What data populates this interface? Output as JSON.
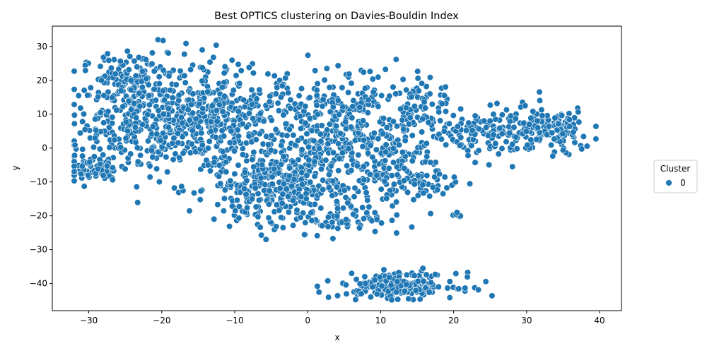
{
  "chart_data": {
    "type": "scatter",
    "title": "Best OPTICS clustering on Davies-Bouldin Index",
    "xlabel": "x",
    "ylabel": "y",
    "xlim": [
      -35,
      43
    ],
    "ylim": [
      -48,
      36
    ],
    "x_ticks": [
      -30,
      -20,
      -10,
      0,
      10,
      20,
      30,
      40
    ],
    "y_ticks": [
      -40,
      -30,
      -20,
      -10,
      0,
      10,
      20,
      30
    ],
    "grid": false,
    "legend": {
      "title": "Cluster",
      "placement": "center-right-outside",
      "entries": [
        {
          "label": "0",
          "color": "#1f77b4"
        }
      ]
    },
    "series": [
      {
        "name": "0",
        "color": "#1f77b4",
        "clusters": [
          {
            "cx": -24,
            "cy": 18,
            "sx": 3.5,
            "sy": 5,
            "n": 170
          },
          {
            "cx": -27,
            "cy": 3,
            "sx": 3.5,
            "sy": 6,
            "n": 120
          },
          {
            "cx": -29.5,
            "cy": -6.5,
            "sx": 2,
            "sy": 1.6,
            "n": 45
          },
          {
            "cx": -18,
            "cy": 8,
            "sx": 4.5,
            "sy": 8,
            "n": 260
          },
          {
            "cx": -10,
            "cy": 8,
            "sx": 4.5,
            "sy": 8,
            "n": 260
          },
          {
            "cx": -6,
            "cy": -12,
            "sx": 4,
            "sy": 6,
            "n": 200
          },
          {
            "cx": 0,
            "cy": -7,
            "sx": 4,
            "sy": 7,
            "n": 220
          },
          {
            "cx": 3,
            "cy": 10,
            "sx": 3.5,
            "sy": 7,
            "n": 160
          },
          {
            "cx": 5,
            "cy": -20,
            "sx": 3,
            "sy": 3,
            "n": 60
          },
          {
            "cx": 9,
            "cy": 3,
            "sx": 2.5,
            "sy": 9,
            "n": 130
          },
          {
            "cx": 13,
            "cy": 4,
            "sx": 2,
            "sy": 9,
            "n": 80
          },
          {
            "cx": 16,
            "cy": 12,
            "sx": 2,
            "sy": 6,
            "n": 60
          },
          {
            "cx": 15,
            "cy": -10,
            "sx": 3,
            "sy": 3,
            "n": 70
          },
          {
            "cx": 22,
            "cy": 4,
            "sx": 2,
            "sy": 3,
            "n": 55
          },
          {
            "cx": 27,
            "cy": 4,
            "sx": 3,
            "sy": 3.5,
            "n": 80
          },
          {
            "cx": 33,
            "cy": 5,
            "sx": 3,
            "sy": 3.5,
            "n": 130
          },
          {
            "cx": 20.5,
            "cy": -19.5,
            "sx": 0.5,
            "sy": 0.5,
            "n": 8
          },
          {
            "cx": 12.5,
            "cy": -40.5,
            "sx": 4,
            "sy": 1.8,
            "n": 200
          }
        ]
      }
    ]
  }
}
